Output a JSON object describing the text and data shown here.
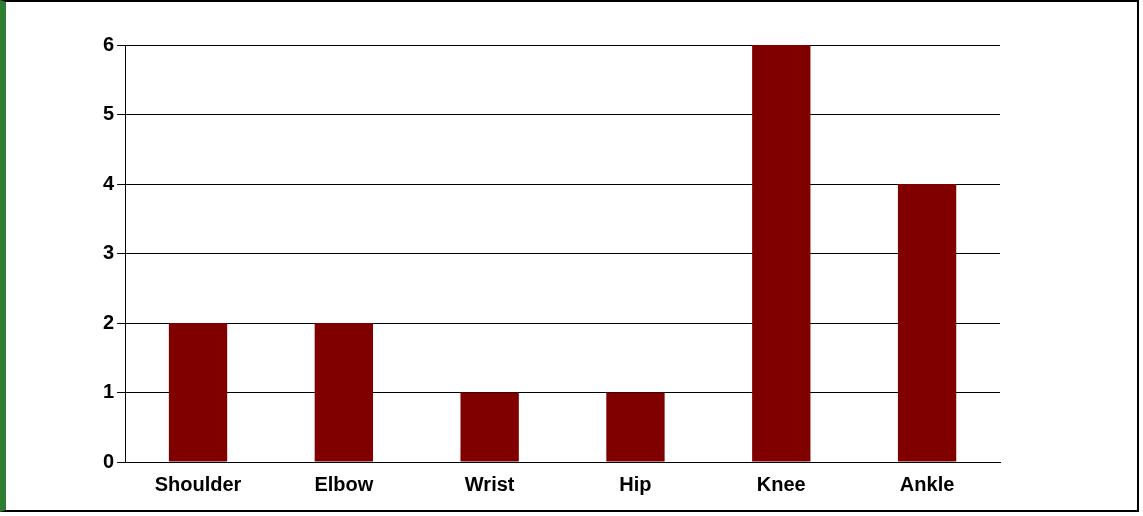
{
  "chart_data": {
    "type": "bar",
    "categories": [
      "Shoulder",
      "Elbow",
      "Wrist",
      "Hip",
      "Knee",
      "Ankle"
    ],
    "values": [
      2,
      2,
      1,
      1,
      6,
      4
    ],
    "color": "#800000",
    "ylim": [
      0,
      6
    ],
    "yticks": [
      0,
      1,
      2,
      3,
      4,
      5,
      6
    ],
    "grid": "y"
  }
}
